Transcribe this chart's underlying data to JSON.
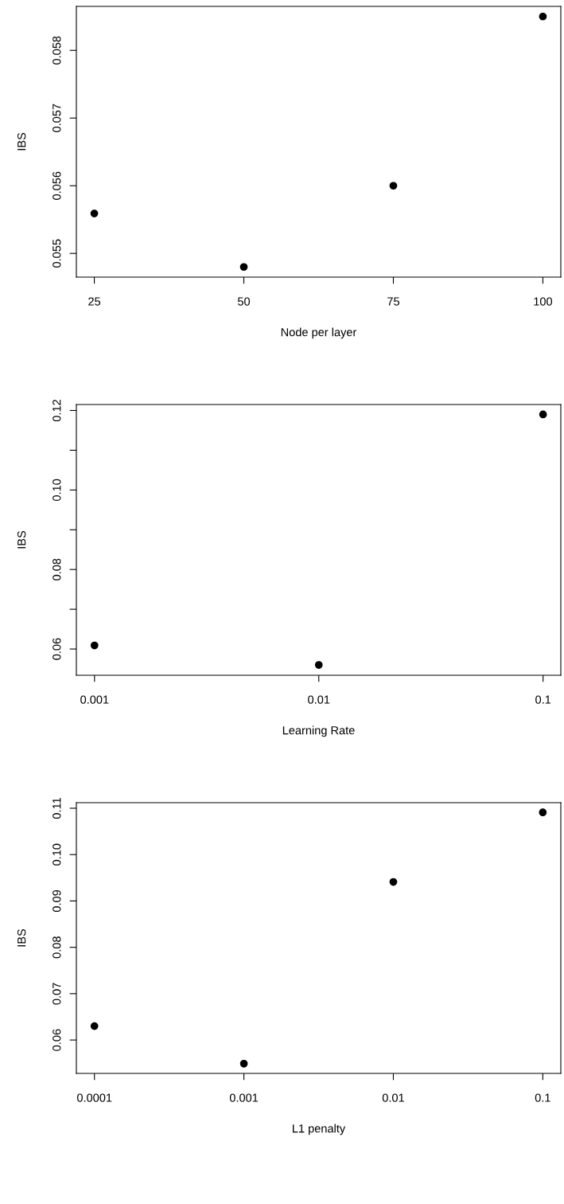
{
  "chart_data": [
    {
      "type": "scatter",
      "xlabel": "Node per layer",
      "ylabel": "IBS",
      "marker": "circle",
      "grid": false,
      "x": [
        25,
        50,
        75,
        100
      ],
      "series": [
        {
          "color": "#000000",
          "values": [
            0.05559,
            0.0548,
            0.056,
            0.0585
          ]
        }
      ],
      "xlim": [
        22,
        103
      ],
      "xticks": [
        25,
        50,
        75,
        100
      ],
      "ylim": [
        0.05465,
        0.05865
      ],
      "yticks": [
        0.055,
        0.056,
        0.057,
        0.058
      ]
    },
    {
      "type": "scatter",
      "xlabel": "Learning Rate",
      "ylabel": "IBS",
      "marker": "circle",
      "grid": false,
      "log": "x",
      "x": [
        0.001,
        0.01,
        0.1
      ],
      "series": [
        {
          "color": "#000000",
          "values": [
            0.0609,
            0.056,
            0.119
          ]
        }
      ],
      "xlim": [
        0.00083,
        0.12
      ],
      "xticks": [
        0.001,
        0.01,
        0.1
      ],
      "ylim": [
        0.0534,
        0.1215
      ],
      "yticks": [
        0.06,
        {
          "value": 0.07,
          "label": null
        },
        0.08,
        {
          "value": 0.09,
          "label": null
        },
        {
          "value": 0.1,
          "label": "0.10"
        },
        {
          "value": 0.11,
          "label": null
        },
        0.12
      ]
    },
    {
      "type": "scatter",
      "xlabel": "L1 penalty",
      "ylabel": "IBS",
      "marker": "circle",
      "grid": false,
      "log": "x",
      "x": [
        0.0001,
        0.001,
        0.01,
        0.1
      ],
      "series": [
        {
          "color": "#000000",
          "values": [
            0.063,
            0.0549,
            0.0941,
            0.1091
          ]
        }
      ],
      "xlim": [
        7.57e-05,
        0.132
      ],
      "xticks": [
        0.0001,
        0.001,
        0.01,
        0.1
      ],
      "ylim": [
        0.0528,
        0.1112
      ],
      "yticks": [
        0.06,
        0.07,
        0.08,
        0.09,
        {
          "value": 0.1,
          "label": "0.10"
        },
        0.11
      ]
    }
  ]
}
